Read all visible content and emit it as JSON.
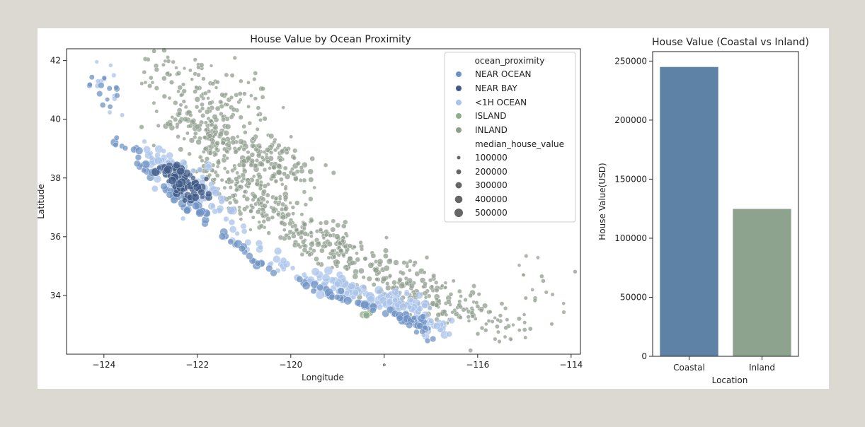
{
  "chart_data": [
    {
      "type": "scatter",
      "title": "House Value by Ocean Proximity",
      "xlabel": "Longitude",
      "ylabel": "Latitude",
      "xlim": [
        -124.8,
        -113.8
      ],
      "ylim": [
        32.0,
        42.4
      ],
      "xticks": [
        -124,
        -122,
        -120,
        -118,
        -116,
        -114
      ],
      "yticks": [
        34,
        36,
        38,
        40,
        42
      ],
      "xtick_labels": [
        "−124",
        "−122",
        "−120",
        "∘",
        "−116",
        "−114"
      ],
      "ytick_labels": [
        "34",
        "36",
        "38",
        "40",
        "42"
      ],
      "grid": false,
      "legend": {
        "placement": "top-right",
        "hue_title": "ocean_proximity",
        "size_title": "median_house_value",
        "size_values": [
          "100000",
          "200000",
          "300000",
          "400000",
          "500000"
        ]
      },
      "series": [
        {
          "name": "NEAR OCEAN",
          "color": "#6f93c4",
          "clusters": [
            {
              "x0": -124.2,
              "y0": 41.6,
              "x1": -123.9,
              "y1": 40.5,
              "n": 14,
              "spread": 0.15,
              "vmin": 120000,
              "vmax": 300000
            },
            {
              "x0": -123.8,
              "y0": 39.4,
              "x1": -122.8,
              "y1": 38.0,
              "n": 20,
              "spread": 0.12,
              "vmin": 200000,
              "vmax": 450000
            },
            {
              "x0": -122.6,
              "y0": 37.7,
              "x1": -121.8,
              "y1": 36.6,
              "n": 30,
              "spread": 0.1,
              "vmin": 250000,
              "vmax": 500000
            },
            {
              "x0": -121.6,
              "y0": 36.2,
              "x1": -120.2,
              "y1": 34.6,
              "n": 18,
              "spread": 0.1,
              "vmin": 220000,
              "vmax": 500000
            },
            {
              "x0": -119.8,
              "y0": 34.4,
              "x1": -117.2,
              "y1": 33.0,
              "n": 40,
              "spread": 0.08,
              "vmin": 250000,
              "vmax": 500000
            },
            {
              "x0": -117.4,
              "y0": 33.2,
              "x1": -117.0,
              "y1": 32.6,
              "n": 20,
              "spread": 0.1,
              "vmin": 180000,
              "vmax": 400000
            }
          ]
        },
        {
          "name": "NEAR BAY",
          "color": "#3f5a86",
          "clusters": [
            {
              "x0": -122.6,
              "y0": 38.3,
              "x1": -122.0,
              "y1": 37.4,
              "n": 70,
              "spread": 0.15,
              "vmin": 150000,
              "vmax": 500000
            }
          ]
        },
        {
          "name": "<1H OCEAN",
          "color": "#a9c3ea",
          "clusters": [
            {
              "x0": -124.0,
              "y0": 41.8,
              "x1": -123.7,
              "y1": 40.2,
              "n": 10,
              "spread": 0.15,
              "vmin": 100000,
              "vmax": 250000
            },
            {
              "x0": -122.9,
              "y0": 38.8,
              "x1": -121.7,
              "y1": 37.0,
              "n": 90,
              "spread": 0.25,
              "vmin": 150000,
              "vmax": 500000
            },
            {
              "x0": -121.5,
              "y0": 36.6,
              "x1": -120.0,
              "y1": 34.8,
              "n": 25,
              "spread": 0.2,
              "vmin": 150000,
              "vmax": 400000
            },
            {
              "x0": -119.5,
              "y0": 34.5,
              "x1": -117.6,
              "y1": 33.7,
              "n": 80,
              "spread": 0.18,
              "vmin": 150000,
              "vmax": 500000
            },
            {
              "x0": -117.8,
              "y0": 34.0,
              "x1": -116.8,
              "y1": 32.8,
              "n": 80,
              "spread": 0.18,
              "vmin": 120000,
              "vmax": 450000
            }
          ]
        },
        {
          "name": "ISLAND",
          "color": "#8fae8c",
          "clusters": [
            {
              "x0": -118.5,
              "y0": 33.4,
              "x1": -118.3,
              "y1": 33.3,
              "n": 5,
              "spread": 0.05,
              "vmin": 300000,
              "vmax": 450000
            }
          ]
        },
        {
          "name": "INLAND",
          "color": "#909e8f",
          "clusters": [
            {
              "x0": -122.9,
              "y0": 41.9,
              "x1": -120.8,
              "y1": 40.2,
              "n": 120,
              "spread": 0.45,
              "vmin": 50000,
              "vmax": 180000
            },
            {
              "x0": -122.5,
              "y0": 40.0,
              "x1": -119.8,
              "y1": 38.2,
              "n": 260,
              "spread": 0.4,
              "vmin": 60000,
              "vmax": 250000
            },
            {
              "x0": -121.8,
              "y0": 38.4,
              "x1": -118.9,
              "y1": 35.4,
              "n": 300,
              "spread": 0.35,
              "vmin": 50000,
              "vmax": 200000
            },
            {
              "x0": -119.2,
              "y0": 35.6,
              "x1": -116.5,
              "y1": 33.6,
              "n": 190,
              "spread": 0.35,
              "vmin": 60000,
              "vmax": 260000
            },
            {
              "x0": -116.6,
              "y0": 34.0,
              "x1": -115.3,
              "y1": 32.7,
              "n": 70,
              "spread": 0.3,
              "vmin": 50000,
              "vmax": 150000
            },
            {
              "x0": -115.2,
              "y0": 35.0,
              "x1": -114.4,
              "y1": 33.3,
              "n": 18,
              "spread": 0.4,
              "vmin": 50000,
              "vmax": 120000
            }
          ]
        }
      ]
    },
    {
      "type": "bar",
      "title": "House Value (Coastal vs Inland)",
      "xlabel": "Location",
      "ylabel": "House Value(USD)",
      "categories": [
        "Coastal",
        "Inland"
      ],
      "values": [
        245000,
        124800
      ],
      "colors": [
        "#5e81a6",
        "#8ea38d"
      ],
      "ylim": [
        0,
        258000
      ],
      "yticks": [
        0,
        50000,
        100000,
        150000,
        200000,
        250000
      ],
      "grid": false
    }
  ]
}
